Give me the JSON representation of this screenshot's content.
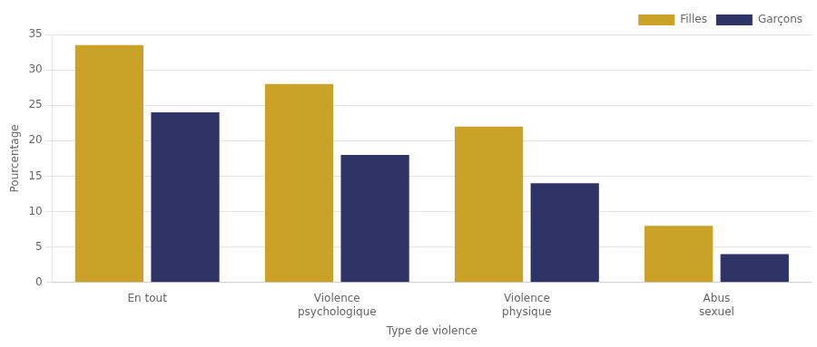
{
  "chart_data": {
    "type": "bar",
    "xlabel": "Type de violence",
    "ylabel": "Pourcentage",
    "categories": [
      "En tout",
      "Violence\npsychologique",
      "Violence\nphysique",
      "Abus\nsexuel"
    ],
    "series": [
      {
        "name": "Filles",
        "color": "#C9A227",
        "values": [
          33.5,
          28.0,
          22.0,
          8.0
        ]
      },
      {
        "name": "Garçons",
        "color": "#2E3566",
        "values": [
          24.0,
          18.0,
          14.0,
          4.0
        ]
      }
    ],
    "ylim": [
      0,
      35
    ],
    "yticks": [
      0,
      5,
      10,
      15,
      20,
      25,
      30,
      35
    ],
    "grid": true,
    "legend": "upper right"
  }
}
